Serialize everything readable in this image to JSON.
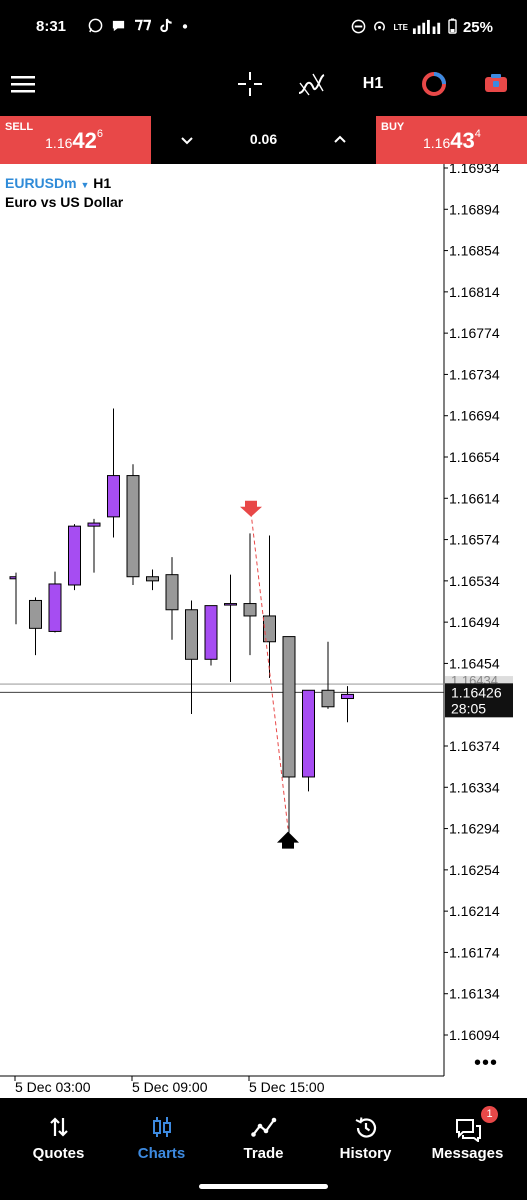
{
  "status_bar": {
    "time": "8:31",
    "lte_label": "LTE",
    "battery": "25%"
  },
  "toolbar": {
    "timeframe": "H1",
    "icons": [
      "menu-icon",
      "crosshair-icon",
      "indicators-icon",
      "timeframe-label",
      "trade-objects-icon",
      "account-icon"
    ]
  },
  "trade_panel": {
    "sell_label": "SELL",
    "sell_prefix": "1.16",
    "sell_big": "42",
    "sell_sup": "6",
    "buy_label": "BUY",
    "buy_prefix": "1.16",
    "buy_big": "43",
    "buy_sup": "4",
    "lot": "0.06",
    "colors": {
      "sell": "#e84848",
      "buy": "#e84848"
    }
  },
  "chart": {
    "symbol": "EURUSDm",
    "timeframe": "H1",
    "description": "Euro vs US Dollar",
    "current_price_label": "1.16426",
    "countdown": "28:05",
    "ask_partial_label": "1.16434"
  },
  "chart_data": {
    "type": "candlestick",
    "timeframe": "H1",
    "y_ticks": [
      "1.16934",
      "1.16894",
      "1.16854",
      "1.16814",
      "1.16774",
      "1.16734",
      "1.16694",
      "1.16654",
      "1.16614",
      "1.16574",
      "1.16534",
      "1.16494",
      "1.16454",
      "1.16374",
      "1.16334",
      "1.16294",
      "1.16254",
      "1.16214",
      "1.16174",
      "1.16134",
      "1.16094"
    ],
    "ylim": [
      1.1608,
      1.16945
    ],
    "x_labels": [
      "5 Dec 03:00",
      "5 Dec 09:00",
      "5 Dec 15:00"
    ],
    "bid": 1.16426,
    "ask": 1.16434,
    "bull_color": "#a64df2",
    "bear_color": "#999999",
    "candles": [
      {
        "o": 1.16536,
        "h": 1.16542,
        "l": 1.16492,
        "c": 1.16538,
        "partial": true
      },
      {
        "o": 1.16515,
        "h": 1.16518,
        "l": 1.16462,
        "c": 1.16488
      },
      {
        "o": 1.16485,
        "h": 1.16543,
        "l": 1.16484,
        "c": 1.16531
      },
      {
        "o": 1.1653,
        "h": 1.16589,
        "l": 1.16525,
        "c": 1.16587
      },
      {
        "o": 1.16587,
        "h": 1.16594,
        "l": 1.16542,
        "c": 1.1659
      },
      {
        "o": 1.16596,
        "h": 1.16701,
        "l": 1.16576,
        "c": 1.16636
      },
      {
        "o": 1.16636,
        "h": 1.16647,
        "l": 1.1653,
        "c": 1.16538
      },
      {
        "o": 1.16538,
        "h": 1.16545,
        "l": 1.16525,
        "c": 1.16534
      },
      {
        "o": 1.1654,
        "h": 1.16557,
        "l": 1.16477,
        "c": 1.16506
      },
      {
        "o": 1.16506,
        "h": 1.16515,
        "l": 1.16405,
        "c": 1.16458
      },
      {
        "o": 1.16458,
        "h": 1.1651,
        "l": 1.16452,
        "c": 1.1651
      },
      {
        "o": 1.16512,
        "h": 1.1654,
        "l": 1.16436,
        "c": 1.16512
      },
      {
        "o": 1.16512,
        "h": 1.1658,
        "l": 1.16462,
        "c": 1.165
      },
      {
        "o": 1.165,
        "h": 1.16578,
        "l": 1.1644,
        "c": 1.16475
      },
      {
        "o": 1.1648,
        "h": 1.1648,
        "l": 1.1629,
        "c": 1.16344
      },
      {
        "o": 1.16344,
        "h": 1.16428,
        "l": 1.1633,
        "c": 1.16428
      },
      {
        "o": 1.16428,
        "h": 1.16475,
        "l": 1.1641,
        "c": 1.16412
      },
      {
        "o": 1.1642,
        "h": 1.16432,
        "l": 1.16397,
        "c": 1.16424
      }
    ],
    "trade_marks": [
      {
        "type": "sell",
        "candle": 12,
        "price": 1.166,
        "color": "#e84848"
      },
      {
        "type": "buy",
        "candle": 14,
        "price": 1.16294,
        "color": "#000000"
      }
    ]
  },
  "bottom_nav": {
    "items": [
      {
        "label": "Quotes",
        "icon": "quotes-arrows-icon",
        "active": false
      },
      {
        "label": "Charts",
        "icon": "charts-candles-icon",
        "active": true
      },
      {
        "label": "Trade",
        "icon": "trade-line-icon",
        "active": false
      },
      {
        "label": "History",
        "icon": "history-clock-icon",
        "active": false
      },
      {
        "label": "Messages",
        "icon": "messages-icon",
        "active": false,
        "badge": "1"
      }
    ],
    "active_color": "#3d8ae0"
  }
}
